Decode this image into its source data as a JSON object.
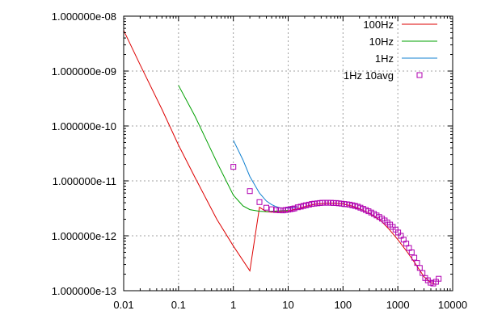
{
  "chart_data": {
    "type": "line",
    "xscale": "log",
    "yscale": "log",
    "xlim": [
      0.01,
      10000
    ],
    "ylim": [
      1e-13,
      1e-08
    ],
    "grid": true,
    "legend_position": "top-right",
    "xticks": [
      {
        "value": 0.01,
        "label": "0.01"
      },
      {
        "value": 0.1,
        "label": "0.1"
      },
      {
        "value": 1,
        "label": "1"
      },
      {
        "value": 10,
        "label": "10"
      },
      {
        "value": 100,
        "label": "100"
      },
      {
        "value": 1000,
        "label": "1000"
      },
      {
        "value": 10000,
        "label": "10000"
      }
    ],
    "yticks": [
      {
        "value": 1e-13,
        "label": "1.000000e-13"
      },
      {
        "value": 1e-12,
        "label": "1.000000e-12"
      },
      {
        "value": 1e-11,
        "label": "1.000000e-11"
      },
      {
        "value": 1e-10,
        "label": "1.000000e-10"
      },
      {
        "value": 1e-09,
        "label": "1.000000e-09"
      },
      {
        "value": 1e-08,
        "label": "1.000000e-08"
      }
    ],
    "series": [
      {
        "name": "100Hz",
        "color": "#dd0000",
        "style": "line",
        "x": [
          0.01,
          0.02,
          0.05,
          0.1,
          0.2,
          0.5,
          1,
          2,
          3,
          4,
          5,
          7,
          10,
          15,
          20,
          30,
          50,
          70,
          100,
          150,
          200,
          300,
          500,
          700,
          1000,
          1500,
          2000,
          3000,
          4000,
          5000
        ],
        "y": [
          5.5e-09,
          1.3e-09,
          2e-10,
          4.5e-11,
          1.15e-11,
          2e-12,
          6.5e-13,
          2.3e-13,
          3.3e-12,
          2.75e-12,
          2.7e-12,
          2.75e-12,
          2.85e-12,
          3.1e-12,
          3.4e-12,
          3.75e-12,
          3.9e-12,
          3.9e-12,
          3.8e-12,
          3.45e-12,
          3.1e-12,
          2.6e-12,
          1.85e-12,
          1.3e-12,
          8.5e-13,
          5e-13,
          3.3e-13,
          1.8e-13,
          1.4e-13,
          1.3e-13
        ]
      },
      {
        "name": "10Hz",
        "color": "#00a000",
        "style": "line",
        "x": [
          0.1,
          0.2,
          0.5,
          1,
          1.5,
          2,
          3,
          4,
          5,
          7,
          10
        ],
        "y": [
          5.5e-10,
          1.5e-10,
          2.2e-11,
          5.5e-12,
          3.5e-12,
          3e-12,
          2.8e-12,
          2.75e-12,
          2.8e-12,
          2.85e-12,
          2.9e-12
        ]
      },
      {
        "name": "1Hz",
        "color": "#1080d0",
        "style": "line",
        "x": [
          1,
          1.5,
          2,
          3,
          4,
          5,
          6,
          7,
          8,
          10,
          15
        ],
        "y": [
          5.5e-11,
          2.4e-11,
          1.2e-11,
          6e-12,
          4.3e-12,
          3.7e-12,
          3.4e-12,
          3.25e-12,
          3.2e-12,
          3.2e-12,
          3.3e-12
        ]
      },
      {
        "name": "1Hz 10avg",
        "color": "#b000b0",
        "style": "markers",
        "marker": "square",
        "x": [
          1,
          2,
          3,
          4,
          5,
          6,
          7,
          8,
          9,
          10,
          11,
          12,
          13,
          15,
          17,
          19,
          21,
          24,
          27,
          30,
          34,
          38,
          42,
          47,
          53,
          60,
          67,
          75,
          84,
          94,
          105,
          118,
          132,
          148,
          166,
          186,
          208,
          233,
          261,
          292,
          327,
          366,
          410,
          459,
          514,
          576,
          645,
          722,
          809,
          906,
          1015,
          1137,
          1273,
          1426,
          1597,
          1789,
          2004,
          2245,
          2514,
          2816,
          3154,
          3533,
          3957,
          4432,
          4964,
          5560
        ],
        "y": [
          1.8e-11,
          6.5e-12,
          4.1e-12,
          3.25e-12,
          3.05e-12,
          2.95e-12,
          2.92e-12,
          2.9e-12,
          2.95e-12,
          3e-12,
          3.05e-12,
          3.1e-12,
          3.15e-12,
          3.3e-12,
          3.4e-12,
          3.5e-12,
          3.6e-12,
          3.7e-12,
          3.8e-12,
          3.85e-12,
          3.9e-12,
          3.95e-12,
          4e-12,
          4e-12,
          4e-12,
          4e-12,
          3.95e-12,
          3.95e-12,
          3.9e-12,
          3.85e-12,
          3.8e-12,
          3.75e-12,
          3.7e-12,
          3.6e-12,
          3.5e-12,
          3.4e-12,
          3.25e-12,
          3.1e-12,
          2.95e-12,
          2.8e-12,
          2.65e-12,
          2.5e-12,
          2.35e-12,
          2.2e-12,
          2.05e-12,
          1.9e-12,
          1.75e-12,
          1.6e-12,
          1.45e-12,
          1.3e-12,
          1.15e-12,
          1e-12,
          8.5e-13,
          7.2e-13,
          6e-13,
          5e-13,
          4e-13,
          3.2e-13,
          2.6e-13,
          2.1e-13,
          1.7e-13,
          1.55e-13,
          1.4e-13,
          1.35e-13,
          1.45e-13,
          1.65e-13
        ]
      }
    ]
  }
}
